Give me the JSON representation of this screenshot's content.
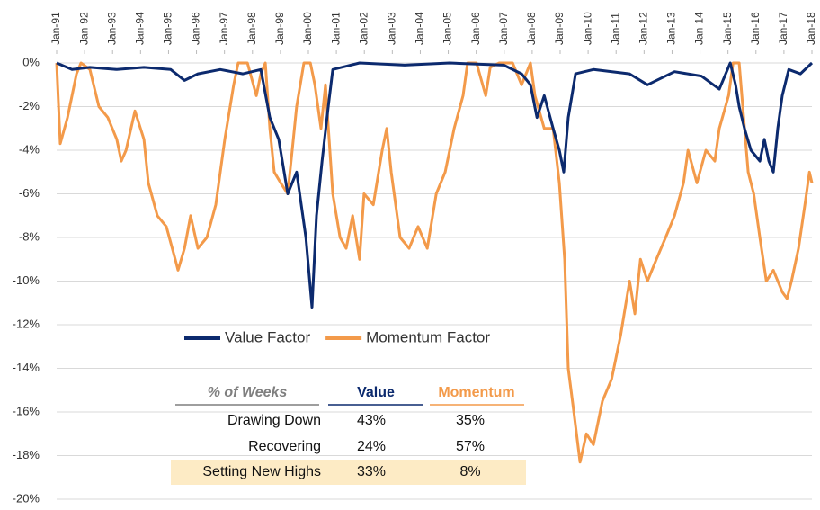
{
  "chart_data": {
    "type": "line",
    "xlim": [
      1991,
      2018
    ],
    "xticks": [
      {
        "value": 1991,
        "label": "Jan-91"
      },
      {
        "value": 1992,
        "label": "Jan-92"
      },
      {
        "value": 1993,
        "label": "Jan-93"
      },
      {
        "value": 1994,
        "label": "Jan-94"
      },
      {
        "value": 1995,
        "label": "Jan-95"
      },
      {
        "value": 1996,
        "label": "Jan-96"
      },
      {
        "value": 1997,
        "label": "Jan-97"
      },
      {
        "value": 1998,
        "label": "Jan-98"
      },
      {
        "value": 1999,
        "label": "Jan-99"
      },
      {
        "value": 2000,
        "label": "Jan-00"
      },
      {
        "value": 2001,
        "label": "Jan-01"
      },
      {
        "value": 2002,
        "label": "Jan-02"
      },
      {
        "value": 2003,
        "label": "Jan-03"
      },
      {
        "value": 2004,
        "label": "Jan-04"
      },
      {
        "value": 2005,
        "label": "Jan-05"
      },
      {
        "value": 2006,
        "label": "Jan-06"
      },
      {
        "value": 2007,
        "label": "Jan-07"
      },
      {
        "value": 2008,
        "label": "Jan-08"
      },
      {
        "value": 2009,
        "label": "Jan-09"
      },
      {
        "value": 2010,
        "label": "Jan-10"
      },
      {
        "value": 2011,
        "label": "Jan-11"
      },
      {
        "value": 2012,
        "label": "Jan-12"
      },
      {
        "value": 2013,
        "label": "Jan-13"
      },
      {
        "value": 2014,
        "label": "Jan-14"
      },
      {
        "value": 2015,
        "label": "Jan-15"
      },
      {
        "value": 2016,
        "label": "Jan-16"
      },
      {
        "value": 2017,
        "label": "Jan-17"
      },
      {
        "value": 2018,
        "label": "Jan-18"
      }
    ],
    "ylim": [
      -20,
      0
    ],
    "yticks": [
      {
        "value": 0,
        "label": "0%"
      },
      {
        "value": -2,
        "label": "-2%"
      },
      {
        "value": -4,
        "label": "-4%"
      },
      {
        "value": -6,
        "label": "-6%"
      },
      {
        "value": -8,
        "label": "-8%"
      },
      {
        "value": -10,
        "label": "-10%"
      },
      {
        "value": -12,
        "label": "-12%"
      },
      {
        "value": -14,
        "label": "-14%"
      },
      {
        "value": -16,
        "label": "-16%"
      },
      {
        "value": -18,
        "label": "-18%"
      },
      {
        "value": -20,
        "label": "-20%"
      }
    ],
    "grid": true,
    "series": [
      {
        "name": "Momentum Factor",
        "color": "#f39a4a",
        "x": [
          1991.0,
          1991.13,
          1991.39,
          1991.71,
          1991.87,
          1992.19,
          1992.51,
          1992.83,
          1993.15,
          1993.31,
          1993.48,
          1993.8,
          1994.12,
          1994.28,
          1994.6,
          1994.92,
          1995.24,
          1995.34,
          1995.57,
          1995.79,
          1996.05,
          1996.37,
          1996.69,
          1997.01,
          1997.33,
          1997.49,
          1997.82,
          1998.14,
          1998.3,
          1998.46,
          1998.62,
          1998.78,
          1999.01,
          1999.26,
          1999.42,
          1999.58,
          1999.84,
          2000.07,
          2000.23,
          2000.45,
          2000.61,
          2000.87,
          2001.13,
          2001.35,
          2001.58,
          2001.83,
          2001.99,
          2002.32,
          2002.64,
          2002.8,
          2002.96,
          2003.28,
          2003.6,
          2003.92,
          2004.25,
          2004.57,
          2004.89,
          2005.21,
          2005.53,
          2005.69,
          2006.01,
          2006.34,
          2006.5,
          2006.82,
          2007.3,
          2007.62,
          2007.94,
          2008.1,
          2008.43,
          2008.75,
          2008.97,
          2009.16,
          2009.29,
          2009.49,
          2009.71,
          2009.94,
          2010.19,
          2010.51,
          2010.84,
          2011.16,
          2011.48,
          2011.67,
          2011.87,
          2012.12,
          2012.44,
          2012.77,
          2013.09,
          2013.41,
          2013.57,
          2013.89,
          2014.21,
          2014.53,
          2014.69,
          2015.02,
          2015.18,
          2015.4,
          2015.56,
          2015.72,
          2015.92,
          2016.14,
          2016.37,
          2016.62,
          2016.94,
          2017.11,
          2017.27,
          2017.52,
          2017.75,
          2017.91,
          2018.0
        ],
        "values": [
          0,
          -3.7,
          -2.5,
          -0.5,
          0,
          -0.3,
          -2,
          -2.5,
          -3.5,
          -4.5,
          -4,
          -2.2,
          -3.5,
          -5.5,
          -7,
          -7.5,
          -9,
          -9.5,
          -8.5,
          -7,
          -8.5,
          -8,
          -6.5,
          -3.5,
          -1,
          0,
          0,
          -1.5,
          -0.5,
          0,
          -3,
          -5,
          -5.5,
          -6,
          -4,
          -2,
          0,
          0,
          -1,
          -3,
          -1,
          -6,
          -8,
          -8.5,
          -7,
          -9,
          -6,
          -6.5,
          -4,
          -3,
          -5,
          -8,
          -8.5,
          -7.5,
          -8.5,
          -6,
          -5,
          -3,
          -1.5,
          0,
          0,
          -1.5,
          -0.2,
          0,
          0,
          -1,
          0,
          -1.5,
          -3,
          -3,
          -5.5,
          -9,
          -14,
          -16,
          -18.3,
          -17,
          -17.5,
          -15.5,
          -14.5,
          -12.5,
          -10,
          -11.5,
          -9,
          -10,
          -9,
          -8,
          -7,
          -5.5,
          -4,
          -5.5,
          -4,
          -4.5,
          -3,
          -1.5,
          0,
          0,
          -2.5,
          -5,
          -6,
          -8,
          -10,
          -9.5,
          -10.5,
          -10.8,
          -10,
          -8.5,
          -6.5,
          -5,
          -5.5
        ]
      },
      {
        "name": "Value Factor",
        "color": "#0c2a6e",
        "x": [
          1991.0,
          1991.55,
          1992.19,
          1993.15,
          1994.12,
          1995.08,
          1995.57,
          1996.05,
          1996.85,
          1997.66,
          1998.3,
          1998.62,
          1998.94,
          1999.26,
          1999.58,
          1999.91,
          2000.13,
          2000.29,
          2000.49,
          2000.71,
          2000.87,
          2001.83,
          2003.44,
          2005.05,
          2006.98,
          2007.62,
          2007.94,
          2008.17,
          2008.43,
          2008.75,
          2008.97,
          2009.13,
          2009.29,
          2009.55,
          2010.19,
          2011.48,
          2012.12,
          2013.09,
          2014.05,
          2014.69,
          2015.08,
          2015.27,
          2015.4,
          2015.59,
          2015.82,
          2016.14,
          2016.3,
          2016.46,
          2016.62,
          2016.78,
          2016.94,
          2017.17,
          2017.59,
          2018.0
        ],
        "values": [
          0,
          -0.3,
          -0.2,
          -0.3,
          -0.2,
          -0.3,
          -0.8,
          -0.5,
          -0.3,
          -0.5,
          -0.3,
          -2.5,
          -3.5,
          -6,
          -5,
          -8,
          -11.2,
          -7,
          -4.5,
          -2,
          -0.3,
          0,
          -0.1,
          0,
          -0.1,
          -0.5,
          -1,
          -2.5,
          -1.5,
          -3,
          -4,
          -5,
          -2.5,
          -0.5,
          -0.3,
          -0.5,
          -1,
          -0.4,
          -0.6,
          -1.2,
          0,
          -1,
          -2,
          -3,
          -4,
          -4.5,
          -3.5,
          -4.5,
          -5,
          -3,
          -1.5,
          -0.3,
          -0.5,
          0
        ]
      }
    ],
    "legend_order": [
      "Value Factor",
      "Momentum Factor"
    ],
    "table": {
      "header": [
        "% of Weeks",
        "Value",
        "Momentum"
      ],
      "rows": [
        [
          "Drawing Down",
          "43%",
          "35%"
        ],
        [
          "Recovering",
          "24%",
          "57%"
        ],
        [
          "Setting New Highs",
          "33%",
          "8%"
        ]
      ],
      "highlight_row": 2
    }
  }
}
